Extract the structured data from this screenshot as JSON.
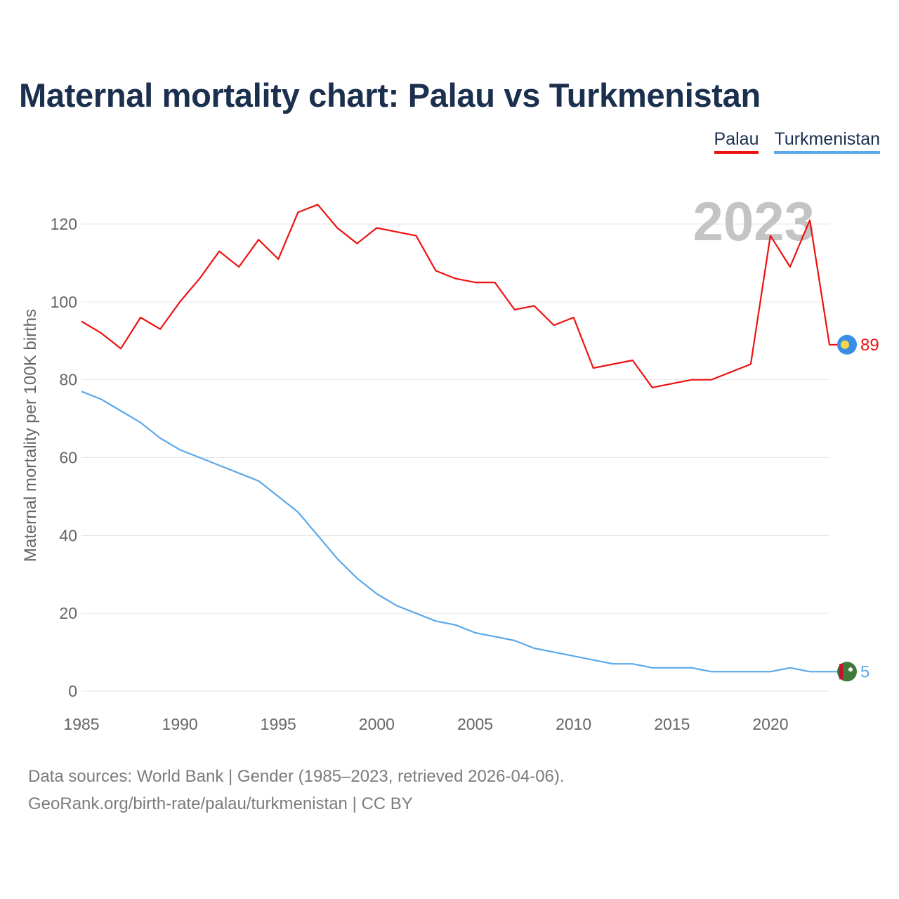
{
  "title": "Maternal mortality chart: Palau vs Turkmenistan",
  "legend": [
    {
      "name": "Palau",
      "color": "#ee1111"
    },
    {
      "name": "Turkmenistan",
      "color": "#5aa8ea"
    }
  ],
  "year_watermark": "2023",
  "source_line1": "Data sources: World Bank | Gender (1985–2023, retrieved 2026-04-06).",
  "source_line2": "GeoRank.org/birth-rate/palau/turkmenistan | CC BY",
  "chart_data": {
    "type": "line",
    "title": "Maternal mortality chart: Palau vs Turkmenistan",
    "xlabel": "",
    "ylabel": "Maternal mortality per 100K births",
    "xlim": [
      1985,
      2023
    ],
    "ylim": [
      0,
      130
    ],
    "x_ticks": [
      1985,
      1990,
      1995,
      2000,
      2005,
      2010,
      2015,
      2020
    ],
    "y_ticks": [
      0,
      20,
      40,
      60,
      80,
      100,
      120
    ],
    "grid": true,
    "legend_position": "top-right",
    "x": [
      1985,
      1986,
      1987,
      1988,
      1989,
      1990,
      1991,
      1992,
      1993,
      1994,
      1995,
      1996,
      1997,
      1998,
      1999,
      2000,
      2001,
      2002,
      2003,
      2004,
      2005,
      2006,
      2007,
      2008,
      2009,
      2010,
      2011,
      2012,
      2013,
      2014,
      2015,
      2016,
      2017,
      2018,
      2019,
      2020,
      2021,
      2022,
      2023
    ],
    "series": [
      {
        "name": "Palau",
        "color": "#ee1111",
        "end_label": "89",
        "values": [
          95,
          92,
          88,
          96,
          93,
          100,
          106,
          113,
          109,
          116,
          111,
          123,
          125,
          119,
          115,
          119,
          118,
          117,
          108,
          106,
          105,
          105,
          98,
          99,
          94,
          96,
          83,
          84,
          85,
          78,
          79,
          80,
          80,
          82,
          84,
          117,
          109,
          121,
          89
        ]
      },
      {
        "name": "Turkmenistan",
        "color": "#5aa8ea",
        "end_label": "5",
        "values": [
          77,
          75,
          72,
          69,
          65,
          62,
          60,
          58,
          56,
          54,
          50,
          46,
          40,
          34,
          29,
          25,
          22,
          20,
          18,
          17,
          15,
          14,
          13,
          11,
          10,
          9,
          8,
          7,
          7,
          6,
          6,
          6,
          5,
          5,
          5,
          5,
          6,
          5,
          5
        ]
      }
    ]
  }
}
